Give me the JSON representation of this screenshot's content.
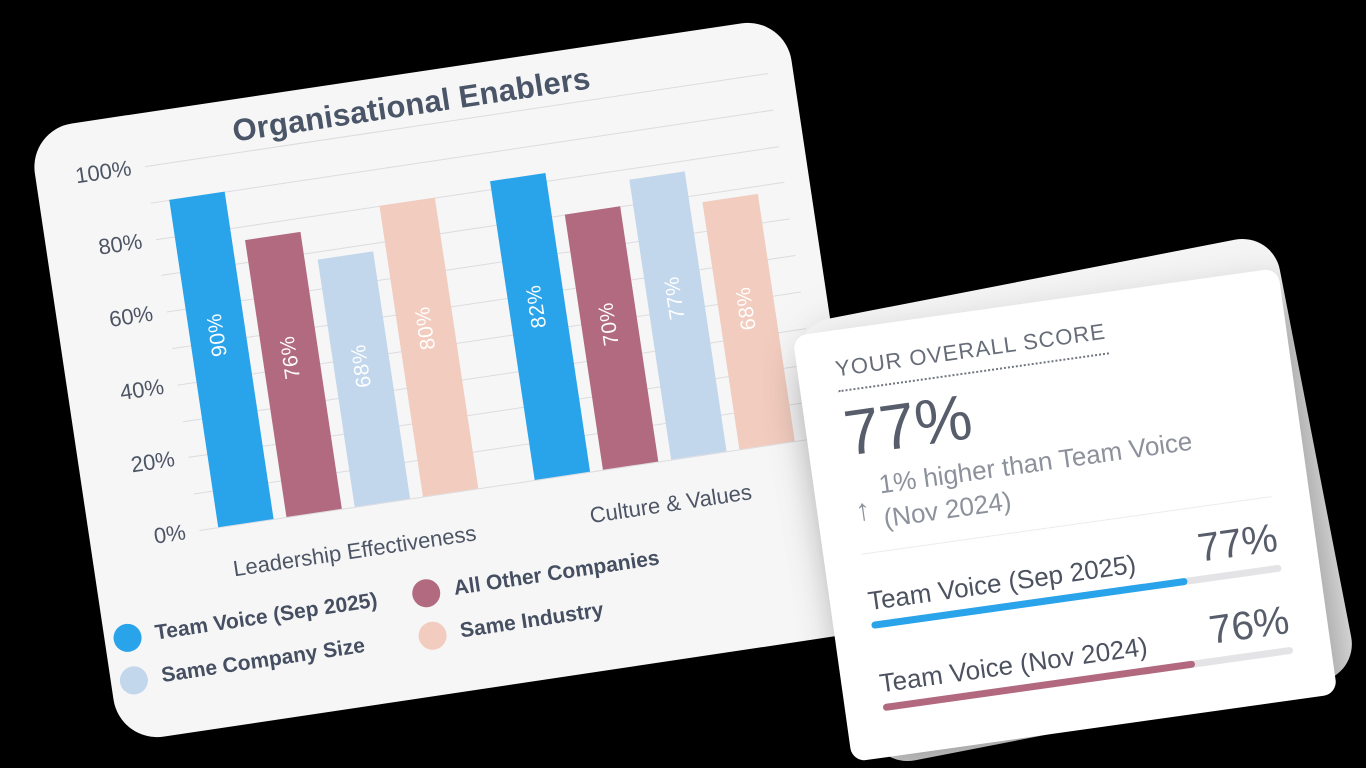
{
  "chart_data": {
    "type": "bar",
    "title": "Organisational Enablers",
    "categories": [
      "Leadership Effectiveness",
      "Culture & Values"
    ],
    "series": [
      {
        "name": "Team Voice (Sep 2025)",
        "color": "#29a3e9",
        "values": [
          90,
          82
        ]
      },
      {
        "name": "All Other Companies",
        "color": "#b16a80",
        "values": [
          76,
          70
        ]
      },
      {
        "name": "Same Company Size",
        "color": "#c2d6ec",
        "values": [
          68,
          77
        ]
      },
      {
        "name": "Same Industry",
        "color": "#f1ccbf",
        "values": [
          80,
          68
        ]
      }
    ],
    "bar_labels": [
      [
        "90%",
        "76%",
        "68%",
        "80%"
      ],
      [
        "82%",
        "70%",
        "77%",
        "68%"
      ]
    ],
    "ylim": [
      0,
      100
    ],
    "y_tick_labels": [
      "0%",
      "20%",
      "40%",
      "60%",
      "80%",
      "100%"
    ],
    "grid_step": 10,
    "grid": true,
    "legend_position": "bottom",
    "legend_order": [
      "Team Voice (Sep 2025)",
      "All Other Companies",
      "Same Company Size",
      "Same Industry"
    ]
  },
  "score_card": {
    "heading": "YOUR OVERALL SCORE",
    "score": "77%",
    "delta_arrow": "↑",
    "delta_text": "1% higher than Team Voice (Nov 2024)",
    "rows": [
      {
        "label": "Team Voice (Sep 2025)",
        "value": "77%",
        "percent": 77,
        "color": "#29a3e9"
      },
      {
        "label": "Team Voice (Nov 2024)",
        "value": "76%",
        "percent": 76,
        "color": "#b2697f"
      }
    ]
  },
  "colors": {
    "background": "#000000",
    "chart_card_bg": "#f6f6f7",
    "score_card_bg": "#ffffff",
    "score_card_backdrop_bg": "#f5f5f6",
    "gridline": "#dcdcdf",
    "axis_text": "#4d5565",
    "title_text": "#4a5568",
    "muted_text": "#8c919b",
    "progress_track": "#e4e4e7"
  }
}
